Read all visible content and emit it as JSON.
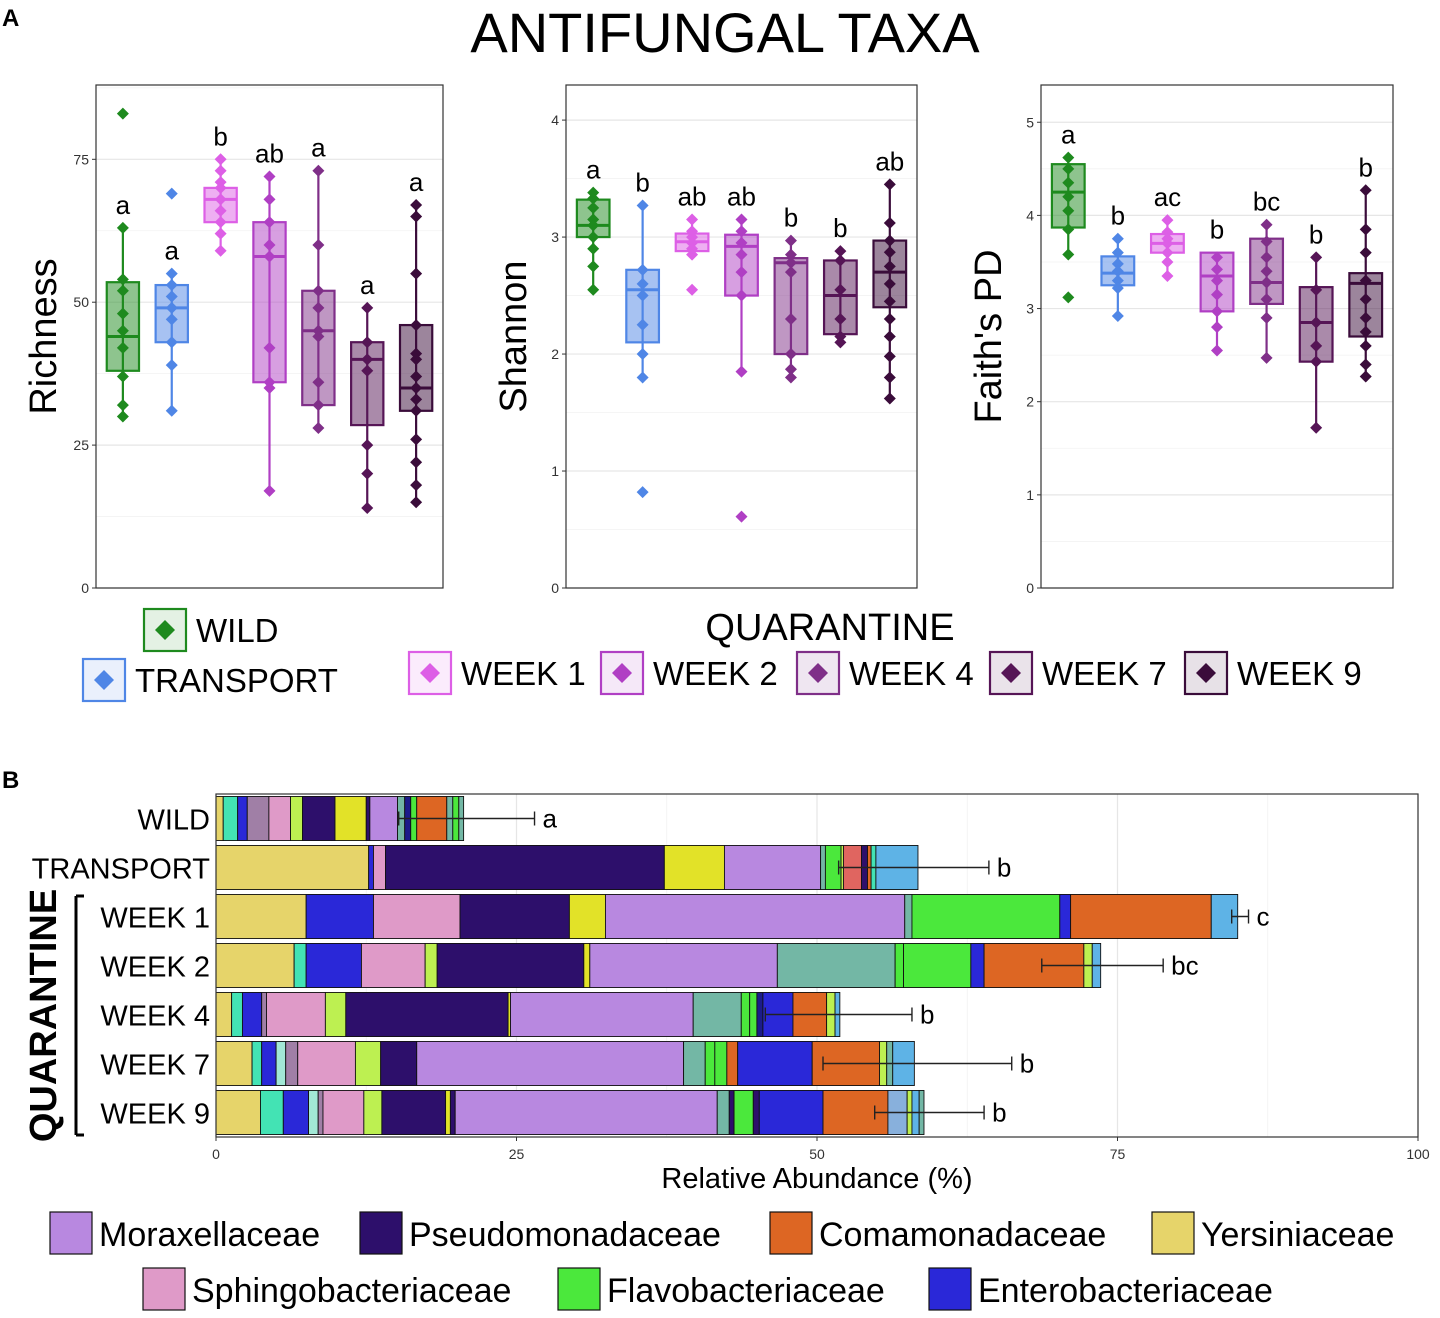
{
  "figure": {
    "panel_a_label": "A",
    "panel_b_label": "B",
    "title": "ANTIFUNGAL TAXA"
  },
  "colors": {
    "WILD": "#1e8a1e",
    "TRANSPORT": "#4f86e6",
    "WEEK 1": "#dd5fe6",
    "WEEK 2": "#b03fc4",
    "WEEK 4": "#7f2f88",
    "WEEK 7": "#561556",
    "WEEK 9": "#3a0c3a"
  },
  "legend_a": {
    "quarantine_title": "QUARANTINE",
    "groups": [
      "WILD",
      "TRANSPORT",
      "WEEK 1",
      "WEEK 2",
      "WEEK 4",
      "WEEK 7",
      "WEEK 9"
    ]
  },
  "chart_data": [
    {
      "type": "box",
      "ylabel": "Richness",
      "xlabel": "",
      "ylim": [
        0,
        88
      ],
      "yticks": [
        0,
        25,
        50,
        75
      ],
      "groups": [
        "WILD",
        "TRANSPORT",
        "WEEK 1",
        "WEEK 2",
        "WEEK 4",
        "WEEK 7",
        "WEEK 9"
      ],
      "boxes": [
        {
          "q1": 38,
          "median": 44,
          "q3": 53.5,
          "whisker_low": 30,
          "whisker_high": 63,
          "points": [
            83,
            63,
            54,
            52,
            48,
            45,
            42,
            37,
            32,
            30
          ],
          "letter": "a"
        },
        {
          "q1": 43,
          "median": 49,
          "q3": 53,
          "whisker_low": 31,
          "whisker_high": 55,
          "points": [
            69,
            55,
            53,
            51,
            49,
            47,
            43,
            39,
            31
          ],
          "letter": "a"
        },
        {
          "q1": 64,
          "median": 68,
          "q3": 70,
          "whisker_low": 59,
          "whisker_high": 75,
          "points": [
            75,
            73,
            71,
            70,
            68,
            66,
            64,
            62,
            59
          ],
          "letter": "b"
        },
        {
          "q1": 36,
          "median": 58,
          "q3": 64,
          "whisker_low": 17,
          "whisker_high": 72,
          "points": [
            72,
            68,
            64,
            60,
            58,
            42,
            36,
            35,
            17
          ],
          "letter": "ab"
        },
        {
          "q1": 32,
          "median": 45,
          "q3": 52,
          "whisker_low": 28,
          "whisker_high": 73,
          "points": [
            73,
            60,
            52,
            49,
            45,
            44,
            36,
            32,
            28
          ],
          "letter": "a"
        },
        {
          "q1": 28.5,
          "median": 40,
          "q3": 43,
          "whisker_low": 14,
          "whisker_high": 49,
          "points": [
            49,
            43,
            40,
            38,
            25,
            20,
            14
          ],
          "letter": "a"
        },
        {
          "q1": 31,
          "median": 35,
          "q3": 46,
          "whisker_low": 15,
          "whisker_high": 67,
          "points": [
            67,
            65,
            55,
            46,
            41,
            40,
            37,
            35,
            33,
            31,
            26,
            22,
            18,
            15
          ],
          "letter": "a"
        }
      ]
    },
    {
      "type": "box",
      "ylabel": "Shannon",
      "xlabel": "",
      "ylim": [
        0,
        4.3
      ],
      "yticks": [
        0,
        1,
        2,
        3,
        4
      ],
      "groups": [
        "WILD",
        "TRANSPORT",
        "WEEK 1",
        "WEEK 2",
        "WEEK 4",
        "WEEK 7",
        "WEEK 9"
      ],
      "boxes": [
        {
          "q1": 3.0,
          "median": 3.1,
          "q3": 3.32,
          "whisker_low": 2.55,
          "whisker_high": 3.38,
          "points": [
            3.38,
            3.33,
            3.25,
            3.15,
            3.1,
            3.0,
            2.9,
            2.75,
            2.55
          ],
          "letter": "a"
        },
        {
          "q1": 2.1,
          "median": 2.55,
          "q3": 2.72,
          "whisker_low": 1.8,
          "whisker_high": 3.27,
          "points": [
            3.27,
            2.72,
            2.6,
            2.5,
            2.25,
            2.0,
            1.8,
            0.82
          ],
          "letter": "b"
        },
        {
          "q1": 2.88,
          "median": 2.96,
          "q3": 3.03,
          "whisker_low": 2.83,
          "whisker_high": 3.15,
          "points": [
            3.15,
            3.05,
            3.0,
            2.95,
            2.9,
            2.85,
            2.55
          ],
          "letter": "ab"
        },
        {
          "q1": 2.5,
          "median": 2.92,
          "q3": 3.02,
          "whisker_low": 1.85,
          "whisker_high": 3.15,
          "points": [
            3.15,
            3.05,
            2.95,
            2.85,
            2.7,
            2.5,
            1.85,
            0.61
          ],
          "letter": "ab"
        },
        {
          "q1": 2.0,
          "median": 2.78,
          "q3": 2.82,
          "whisker_low": 1.8,
          "whisker_high": 2.97,
          "points": [
            2.97,
            2.85,
            2.78,
            2.7,
            2.3,
            2.0,
            1.87,
            1.8
          ],
          "letter": "b"
        },
        {
          "q1": 2.17,
          "median": 2.5,
          "q3": 2.8,
          "whisker_low": 2.1,
          "whisker_high": 2.88,
          "points": [
            2.88,
            2.8,
            2.55,
            2.3,
            2.15,
            2.1
          ],
          "letter": "b"
        },
        {
          "q1": 2.4,
          "median": 2.7,
          "q3": 2.97,
          "whisker_low": 1.62,
          "whisker_high": 3.45,
          "points": [
            3.45,
            3.12,
            2.97,
            2.87,
            2.75,
            2.6,
            2.45,
            2.3,
            2.15,
            1.98,
            1.8,
            1.62
          ],
          "letter": "ab"
        }
      ]
    },
    {
      "type": "box",
      "ylabel": "Faith's PD",
      "xlabel": "",
      "ylim": [
        0,
        5.4
      ],
      "yticks": [
        0,
        1,
        2,
        3,
        4,
        5
      ],
      "groups": [
        "WILD",
        "TRANSPORT",
        "WEEK 1",
        "WEEK 2",
        "WEEK 4",
        "WEEK 7",
        "WEEK 9"
      ],
      "boxes": [
        {
          "q1": 3.87,
          "median": 4.25,
          "q3": 4.55,
          "whisker_low": 3.58,
          "whisker_high": 4.62,
          "points": [
            4.62,
            4.5,
            4.35,
            4.2,
            4.05,
            3.85,
            3.58,
            3.12
          ],
          "letter": "a"
        },
        {
          "q1": 3.25,
          "median": 3.38,
          "q3": 3.56,
          "whisker_low": 2.92,
          "whisker_high": 3.75,
          "points": [
            3.75,
            3.6,
            3.48,
            3.4,
            3.3,
            3.22,
            2.92
          ],
          "letter": "b"
        },
        {
          "q1": 3.6,
          "median": 3.7,
          "q3": 3.8,
          "whisker_low": 3.35,
          "whisker_high": 3.95,
          "points": [
            3.95,
            3.82,
            3.75,
            3.7,
            3.6,
            3.5,
            3.35
          ],
          "letter": "ac"
        },
        {
          "q1": 2.97,
          "median": 3.35,
          "q3": 3.6,
          "whisker_low": 2.55,
          "whisker_high": 3.6,
          "points": [
            3.55,
            3.42,
            3.3,
            3.15,
            2.97,
            2.8,
            2.55
          ],
          "letter": "b"
        },
        {
          "q1": 3.05,
          "median": 3.28,
          "q3": 3.75,
          "whisker_low": 2.47,
          "whisker_high": 3.9,
          "points": [
            3.9,
            3.72,
            3.55,
            3.4,
            3.28,
            3.1,
            2.9,
            2.47
          ],
          "letter": "bc"
        },
        {
          "q1": 2.43,
          "median": 2.85,
          "q3": 3.23,
          "whisker_low": 1.72,
          "whisker_high": 3.55,
          "points": [
            3.55,
            3.2,
            2.85,
            2.6,
            2.43,
            1.72
          ],
          "letter": "b"
        },
        {
          "q1": 2.7,
          "median": 3.27,
          "q3": 3.38,
          "whisker_low": 2.27,
          "whisker_high": 4.27,
          "points": [
            4.27,
            3.85,
            3.6,
            3.3,
            3.1,
            2.9,
            2.75,
            2.6,
            2.4,
            2.27
          ],
          "letter": "b"
        }
      ]
    },
    {
      "type": "stacked_bar_horizontal",
      "title": "",
      "xlabel": "Relative Abundance (%)",
      "ylabel": "",
      "xlim": [
        0,
        100
      ],
      "xticks": [
        0,
        25,
        50,
        75,
        100
      ],
      "bracket_label": "QUARANTINE",
      "categories": [
        "WILD",
        "TRANSPORT",
        "WEEK 1",
        "WEEK 2",
        "WEEK 4",
        "WEEK 7",
        "WEEK 9"
      ],
      "bars": [
        {
          "segments": [
            [
              0.6,
              "#e6d46a"
            ],
            [
              1.2,
              "#43e3b4"
            ],
            [
              0.8,
              "#2a28d8"
            ],
            [
              1.8,
              "#a07fa6"
            ],
            [
              1.8,
              "#df9ac8"
            ],
            [
              1.0,
              "#bdf051"
            ],
            [
              2.7,
              "#2d0f6b"
            ],
            [
              2.6,
              "#e2e228"
            ],
            [
              0.3,
              "#2d0f6b"
            ],
            [
              2.3,
              "#b888e0"
            ],
            [
              0.6,
              "#73b7a5"
            ],
            [
              0.5,
              "#1c1c8a"
            ],
            [
              0.5,
              "#4be83c"
            ],
            [
              2.5,
              "#dd6623"
            ],
            [
              0.5,
              "#73b7a5"
            ],
            [
              0.5,
              "#4be83c"
            ],
            [
              0.4,
              "#73b7a5"
            ]
          ],
          "error": [
            15.2,
            26.5
          ],
          "letter": "a"
        },
        {
          "segments": [
            [
              12.7,
              "#e6d46a"
            ],
            [
              0.4,
              "#2a28d8"
            ],
            [
              1.0,
              "#df9ac8"
            ],
            [
              23.2,
              "#2d0f6b"
            ],
            [
              5.0,
              "#e2e228"
            ],
            [
              8.0,
              "#b888e0"
            ],
            [
              0.4,
              "#73b7a5"
            ],
            [
              1.3,
              "#4be83c"
            ],
            [
              0.2,
              "#bdf051"
            ],
            [
              1.5,
              "#e06560"
            ],
            [
              0.5,
              "#2d0f6b"
            ],
            [
              0.3,
              "#dd6623"
            ],
            [
              0.4,
              "#43e3b4"
            ],
            [
              3.5,
              "#5eb3e6"
            ]
          ],
          "error": [
            51.8,
            64.3
          ],
          "letter": "b"
        },
        {
          "segments": [
            [
              7.5,
              "#e6d46a"
            ],
            [
              5.6,
              "#2a28d8"
            ],
            [
              7.2,
              "#df9ac8"
            ],
            [
              9.1,
              "#2d0f6b"
            ],
            [
              3.0,
              "#e2e228"
            ],
            [
              24.9,
              "#b888e0"
            ],
            [
              0.6,
              "#73b7a5"
            ],
            [
              12.3,
              "#4be83c"
            ],
            [
              0.9,
              "#2a28d8"
            ],
            [
              11.7,
              "#dd6623"
            ],
            [
              2.2,
              "#5eb3e6"
            ]
          ],
          "error": [
            84.5,
            85.9
          ],
          "letter": "c"
        },
        {
          "segments": [
            [
              6.5,
              "#e6d46a"
            ],
            [
              1.0,
              "#43e3b4"
            ],
            [
              4.6,
              "#2a28d8"
            ],
            [
              5.3,
              "#df9ac8"
            ],
            [
              1.0,
              "#bdf051"
            ],
            [
              12.2,
              "#2d0f6b"
            ],
            [
              0.5,
              "#e2e228"
            ],
            [
              15.6,
              "#b888e0"
            ],
            [
              9.8,
              "#73b7a5"
            ],
            [
              0.7,
              "#4be83c"
            ],
            [
              5.6,
              "#4be83c"
            ],
            [
              1.1,
              "#2a28d8"
            ],
            [
              8.3,
              "#dd6623"
            ],
            [
              0.7,
              "#bdf051"
            ],
            [
              0.7,
              "#5eb3e6"
            ]
          ],
          "error": [
            68.7,
            78.8
          ],
          "letter": "bc"
        },
        {
          "segments": [
            [
              1.3,
              "#e6d46a"
            ],
            [
              0.9,
              "#43e3b4"
            ],
            [
              1.6,
              "#2a28d8"
            ],
            [
              0.4,
              "#a07fa6"
            ],
            [
              4.9,
              "#df9ac8"
            ],
            [
              1.7,
              "#bdf051"
            ],
            [
              13.5,
              "#2d0f6b"
            ],
            [
              0.2,
              "#e2e228"
            ],
            [
              15.2,
              "#b888e0"
            ],
            [
              4.0,
              "#73b7a5"
            ],
            [
              0.7,
              "#4be83c"
            ],
            [
              0.6,
              "#4be83c"
            ],
            [
              0.5,
              "#1c1c8a"
            ],
            [
              2.5,
              "#2a28d8"
            ],
            [
              2.8,
              "#dd6623"
            ],
            [
              0.7,
              "#bdf051"
            ],
            [
              0.4,
              "#5eb3e6"
            ]
          ],
          "error": [
            45.7,
            57.9
          ],
          "letter": "b"
        },
        {
          "segments": [
            [
              3.0,
              "#e6d46a"
            ],
            [
              0.8,
              "#43e3b4"
            ],
            [
              1.2,
              "#2a28d8"
            ],
            [
              0.8,
              "#a2e8d6"
            ],
            [
              1.0,
              "#a07fa6"
            ],
            [
              4.8,
              "#df9ac8"
            ],
            [
              2.1,
              "#bdf051"
            ],
            [
              3.0,
              "#2d0f6b"
            ],
            [
              22.2,
              "#b888e0"
            ],
            [
              1.8,
              "#73b7a5"
            ],
            [
              0.8,
              "#4be83c"
            ],
            [
              1.0,
              "#4be83c"
            ],
            [
              0.9,
              "#dd6623"
            ],
            [
              6.2,
              "#2a28d8"
            ],
            [
              5.6,
              "#dd6623"
            ],
            [
              0.6,
              "#bdf051"
            ],
            [
              0.5,
              "#73b7a5"
            ],
            [
              1.8,
              "#5eb3e6"
            ]
          ],
          "error": [
            50.5,
            66.2
          ],
          "letter": "b"
        },
        {
          "segments": [
            [
              3.7,
              "#e6d46a"
            ],
            [
              1.9,
              "#43e3b4"
            ],
            [
              2.1,
              "#2a28d8"
            ],
            [
              0.8,
              "#a2e8d6"
            ],
            [
              0.4,
              "#a07fa6"
            ],
            [
              3.4,
              "#df9ac8"
            ],
            [
              1.5,
              "#bdf051"
            ],
            [
              5.3,
              "#2d0f6b"
            ],
            [
              0.4,
              "#e2e228"
            ],
            [
              0.4,
              "#2d0f6b"
            ],
            [
              21.8,
              "#b888e0"
            ],
            [
              1.0,
              "#73b7a5"
            ],
            [
              0.4,
              "#2d0f6b"
            ],
            [
              1.6,
              "#4be83c"
            ],
            [
              0.5,
              "#2d0f6b"
            ],
            [
              5.3,
              "#2a28d8"
            ],
            [
              5.4,
              "#dd6623"
            ],
            [
              1.6,
              "#88b0dc"
            ],
            [
              0.4,
              "#bdf051"
            ],
            [
              0.6,
              "#5eb3e6"
            ],
            [
              0.4,
              "#73b7a5"
            ]
          ],
          "error": [
            54.8,
            63.9
          ],
          "letter": "b"
        }
      ]
    }
  ],
  "legend_b": [
    {
      "label": "Moraxellaceae",
      "color": "#b888e0"
    },
    {
      "label": "Pseudomonadaceae",
      "color": "#2d0f6b"
    },
    {
      "label": "Comamonadaceae",
      "color": "#dd6623"
    },
    {
      "label": "Yersiniaceae",
      "color": "#e6d46a"
    },
    {
      "label": "Sphingobacteriaceae",
      "color": "#df9ac8"
    },
    {
      "label": "Flavobacteriaceae",
      "color": "#4be83c"
    },
    {
      "label": "Enterobacteriaceae",
      "color": "#2a28d8"
    }
  ]
}
